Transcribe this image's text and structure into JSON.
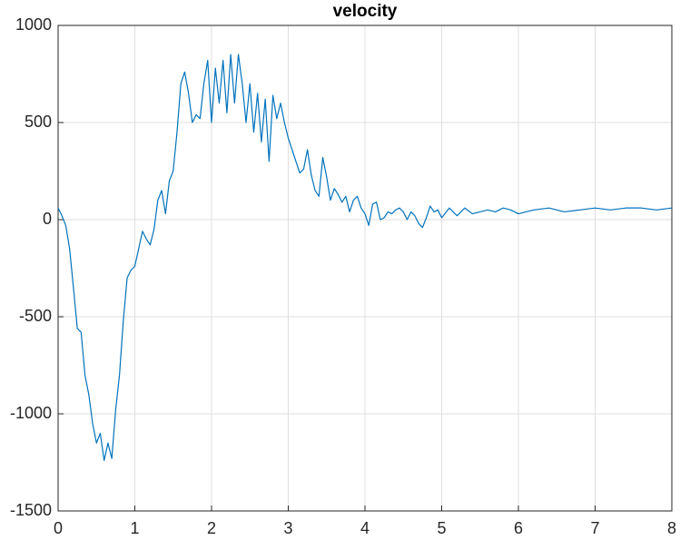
{
  "chart_data": {
    "type": "line",
    "title": "velocity",
    "x": [
      0,
      0.05,
      0.1,
      0.15,
      0.2,
      0.25,
      0.3,
      0.35,
      0.4,
      0.45,
      0.5,
      0.55,
      0.6,
      0.65,
      0.7,
      0.75,
      0.8,
      0.85,
      0.9,
      0.95,
      1.0,
      1.05,
      1.1,
      1.15,
      1.2,
      1.25,
      1.3,
      1.35,
      1.4,
      1.45,
      1.5,
      1.55,
      1.6,
      1.65,
      1.7,
      1.75,
      1.8,
      1.85,
      1.9,
      1.95,
      2.0,
      2.05,
      2.1,
      2.15,
      2.2,
      2.25,
      2.3,
      2.35,
      2.4,
      2.45,
      2.5,
      2.55,
      2.6,
      2.65,
      2.7,
      2.75,
      2.8,
      2.85,
      2.9,
      2.95,
      3.0,
      3.05,
      3.1,
      3.15,
      3.2,
      3.25,
      3.3,
      3.35,
      3.4,
      3.45,
      3.5,
      3.55,
      3.6,
      3.65,
      3.7,
      3.75,
      3.8,
      3.85,
      3.9,
      3.95,
      4.0,
      4.05,
      4.1,
      4.15,
      4.2,
      4.25,
      4.3,
      4.35,
      4.4,
      4.45,
      4.5,
      4.55,
      4.6,
      4.65,
      4.7,
      4.75,
      4.8,
      4.85,
      4.9,
      4.95,
      5.0,
      5.1,
      5.2,
      5.3,
      5.4,
      5.5,
      5.6,
      5.7,
      5.8,
      5.9,
      6.0,
      6.2,
      6.4,
      6.6,
      6.8,
      7.0,
      7.2,
      7.4,
      7.6,
      7.8,
      8.0
    ],
    "values": [
      60,
      20,
      -30,
      -150,
      -350,
      -560,
      -580,
      -800,
      -900,
      -1050,
      -1150,
      -1100,
      -1240,
      -1150,
      -1230,
      -980,
      -800,
      -520,
      -300,
      -260,
      -240,
      -150,
      -60,
      -100,
      -130,
      -50,
      100,
      150,
      30,
      200,
      250,
      450,
      700,
      760,
      650,
      500,
      540,
      520,
      700,
      820,
      500,
      780,
      600,
      820,
      550,
      850,
      600,
      850,
      700,
      500,
      700,
      450,
      650,
      400,
      620,
      300,
      640,
      520,
      600,
      500,
      420,
      360,
      300,
      240,
      260,
      360,
      230,
      150,
      120,
      320,
      220,
      100,
      160,
      130,
      90,
      120,
      40,
      100,
      120,
      60,
      30,
      -30,
      80,
      90,
      0,
      10,
      40,
      30,
      50,
      60,
      40,
      0,
      40,
      20,
      -20,
      -40,
      10,
      70,
      40,
      50,
      10,
      60,
      20,
      60,
      30,
      40,
      50,
      40,
      60,
      50,
      30,
      50,
      60,
      40,
      50,
      60,
      50,
      60,
      60,
      50,
      60
    ],
    "color": "#0072bd",
    "xlim": [
      0,
      8
    ],
    "xticks": [
      0,
      1,
      2,
      3,
      4,
      5,
      6,
      7,
      8
    ],
    "ylim": [
      -1500,
      1000
    ],
    "yticks": [
      -1500,
      -1000,
      -500,
      0,
      500,
      1000
    ],
    "grid": true
  }
}
